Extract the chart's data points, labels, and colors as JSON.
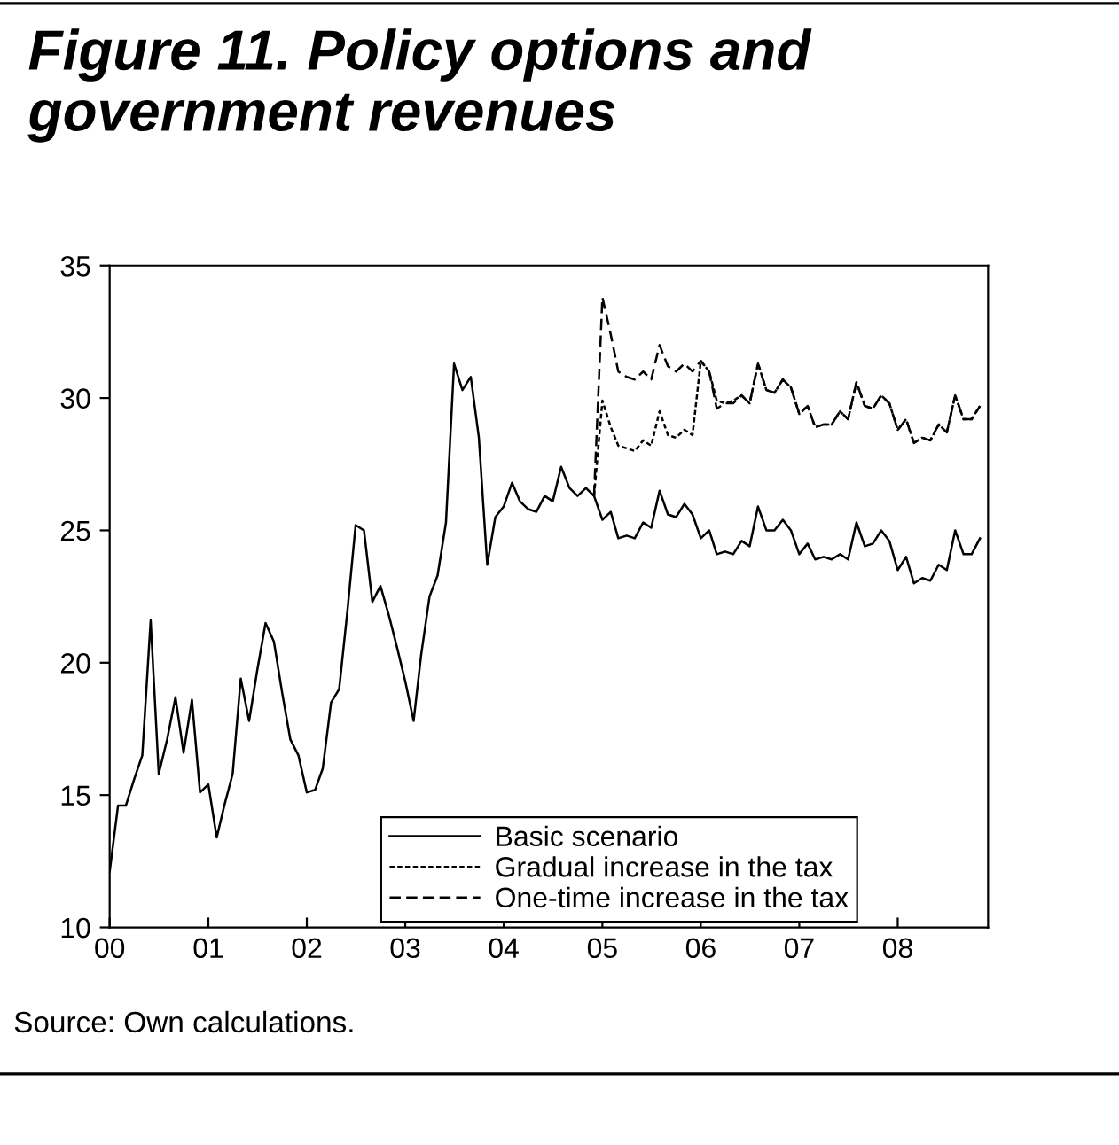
{
  "chart_data": {
    "type": "line",
    "title": "Figure 11. Policy options and government revenues",
    "annotations": [
      "Source: Own calculations."
    ],
    "x": [
      "2000-01",
      "2000-02",
      "2000-03",
      "2000-04",
      "2000-05",
      "2000-06",
      "2000-07",
      "2000-08",
      "2000-09",
      "2000-10",
      "2000-11",
      "2000-12",
      "2001-01",
      "2001-02",
      "2001-03",
      "2001-04",
      "2001-05",
      "2001-06",
      "2001-07",
      "2001-08",
      "2001-09",
      "2001-10",
      "2001-11",
      "2001-12",
      "2002-01",
      "2002-02",
      "2002-03",
      "2002-04",
      "2002-05",
      "2002-06",
      "2002-07",
      "2002-08",
      "2002-09",
      "2002-10",
      "2002-11",
      "2002-12",
      "2003-01",
      "2003-02",
      "2003-03",
      "2003-04",
      "2003-05",
      "2003-06",
      "2003-07",
      "2003-08",
      "2003-09",
      "2003-10",
      "2003-11",
      "2003-12",
      "2004-01",
      "2004-02",
      "2004-03",
      "2004-04",
      "2004-05",
      "2004-06",
      "2004-07",
      "2004-08",
      "2004-09",
      "2004-10",
      "2004-11",
      "2004-12",
      "2005-01",
      "2005-02",
      "2005-03",
      "2005-04",
      "2005-05",
      "2005-06",
      "2005-07",
      "2005-08",
      "2005-09",
      "2005-10",
      "2005-11",
      "2005-12",
      "2006-01",
      "2006-02",
      "2006-03",
      "2006-04",
      "2006-05",
      "2006-06",
      "2006-07",
      "2006-08",
      "2006-09",
      "2006-10",
      "2006-11",
      "2006-12",
      "2007-01",
      "2007-02",
      "2007-03",
      "2007-04",
      "2007-05",
      "2007-06",
      "2007-07",
      "2007-08",
      "2007-09",
      "2007-10",
      "2007-11",
      "2007-12",
      "2008-01",
      "2008-02",
      "2008-03",
      "2008-04",
      "2008-05",
      "2008-06",
      "2008-07",
      "2008-08",
      "2008-09",
      "2008-10",
      "2008-11"
    ],
    "series": [
      {
        "name": "Basic scenario",
        "color": "#000000",
        "line_style": "solid",
        "values": [
          12.1,
          14.6,
          14.6,
          15.6,
          16.5,
          21.6,
          15.8,
          17.1,
          18.7,
          16.6,
          18.6,
          15.1,
          15.4,
          13.4,
          14.6,
          15.8,
          19.4,
          17.8,
          19.7,
          21.5,
          20.8,
          18.9,
          17.1,
          16.5,
          15.1,
          15.2,
          16.0,
          18.5,
          19.0,
          22.0,
          25.2,
          25.0,
          22.3,
          22.9,
          21.8,
          20.6,
          19.3,
          17.8,
          20.3,
          22.5,
          23.3,
          25.3,
          31.3,
          30.3,
          30.8,
          28.5,
          23.7,
          25.5,
          25.9,
          26.8,
          26.1,
          25.8,
          25.7,
          26.3,
          26.1,
          27.4,
          26.6,
          26.3,
          26.6,
          26.3,
          25.4,
          25.7,
          24.7,
          24.8,
          24.7,
          25.3,
          25.1,
          26.5,
          25.6,
          25.5,
          26.0,
          25.6,
          24.7,
          25.0,
          24.1,
          24.2,
          24.1,
          24.6,
          24.4,
          25.9,
          25.0,
          25.0,
          25.4,
          25.0,
          24.1,
          24.5,
          23.9,
          24.0,
          23.9,
          24.1,
          23.9,
          25.3,
          24.4,
          24.5,
          25.0,
          24.6,
          23.5,
          24.0,
          23.0,
          23.2,
          23.1,
          23.7,
          23.5,
          25.0,
          24.1,
          24.1,
          24.7
        ]
      },
      {
        "name": "Gradual increase in the tax",
        "color": "#000000",
        "line_style": "dotted",
        "values": [
          null,
          null,
          null,
          null,
          null,
          null,
          null,
          null,
          null,
          null,
          null,
          null,
          null,
          null,
          null,
          null,
          null,
          null,
          null,
          null,
          null,
          null,
          null,
          null,
          null,
          null,
          null,
          null,
          null,
          null,
          null,
          null,
          null,
          null,
          null,
          null,
          null,
          null,
          null,
          null,
          null,
          null,
          null,
          null,
          null,
          null,
          null,
          null,
          null,
          null,
          null,
          null,
          null,
          null,
          null,
          null,
          null,
          null,
          null,
          26.3,
          29.9,
          28.9,
          28.2,
          28.1,
          28.0,
          28.4,
          28.2,
          29.5,
          28.6,
          28.5,
          28.8,
          28.6,
          31.4,
          31.0,
          29.9,
          29.8,
          29.9,
          30.1,
          29.8,
          31.3,
          30.3,
          30.2,
          30.7,
          30.4,
          29.4,
          29.7,
          28.9,
          29.0,
          29.0,
          29.5,
          29.2,
          30.6,
          29.7,
          29.6,
          30.1,
          29.8,
          28.8,
          29.2,
          28.3,
          28.5,
          28.4,
          29.0,
          28.7,
          30.1,
          29.2,
          29.2,
          29.7
        ]
      },
      {
        "name": "One-time increase in the tax",
        "color": "#000000",
        "line_style": "dashed",
        "values": [
          null,
          null,
          null,
          null,
          null,
          null,
          null,
          null,
          null,
          null,
          null,
          null,
          null,
          null,
          null,
          null,
          null,
          null,
          null,
          null,
          null,
          null,
          null,
          null,
          null,
          null,
          null,
          null,
          null,
          null,
          null,
          null,
          null,
          null,
          null,
          null,
          null,
          null,
          null,
          null,
          null,
          null,
          null,
          null,
          null,
          null,
          null,
          null,
          null,
          null,
          null,
          null,
          null,
          null,
          null,
          null,
          null,
          null,
          null,
          26.3,
          33.8,
          32.4,
          31.0,
          30.8,
          30.7,
          31.0,
          30.7,
          32.0,
          31.2,
          31.0,
          31.3,
          31.0,
          31.4,
          31.0,
          29.6,
          29.8,
          29.8,
          30.1,
          29.8,
          31.3,
          30.3,
          30.2,
          30.7,
          30.4,
          29.4,
          29.7,
          28.9,
          29.0,
          29.0,
          29.5,
          29.2,
          30.6,
          29.7,
          29.6,
          30.1,
          29.8,
          28.8,
          29.2,
          28.3,
          28.5,
          28.4,
          29.0,
          28.7,
          30.1,
          29.2,
          29.2,
          29.7
        ]
      }
    ],
    "xlim": [
      "2000-01",
      "2008-12"
    ],
    "xticks": [
      {
        "value": "2000-01",
        "label": "00"
      },
      {
        "value": "2001-01",
        "label": "01"
      },
      {
        "value": "2002-01",
        "label": "02"
      },
      {
        "value": "2003-01",
        "label": "03"
      },
      {
        "value": "2004-01",
        "label": "04"
      },
      {
        "value": "2005-01",
        "label": "05"
      },
      {
        "value": "2006-01",
        "label": "06"
      },
      {
        "value": "2007-01",
        "label": "07"
      },
      {
        "value": "2008-01",
        "label": "08"
      }
    ],
    "ylim": [
      10,
      35
    ],
    "yticks": [
      10,
      15,
      20,
      25,
      30,
      35
    ],
    "grid": false,
    "legend": "bottom",
    "marker": "none"
  }
}
